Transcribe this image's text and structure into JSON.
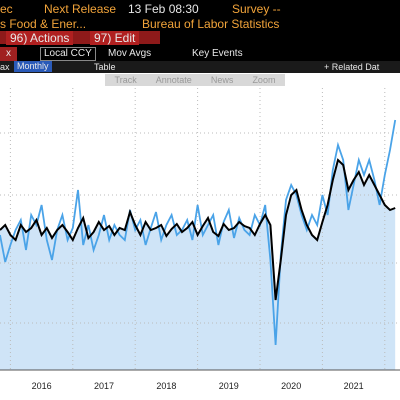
{
  "header": {
    "security": "ec",
    "release_label": "Next Release",
    "release_value": "13 Feb 08:30",
    "survey": "Survey --",
    "description": "s Food & Ener...",
    "source": "Bureau of Labor Statistics",
    "actions": "96) Actions",
    "edit": "97) Edit",
    "field": "x",
    "currency": "Local CCY",
    "mov_avgs": "Mov Avgs",
    "key_events": "Key Events",
    "max": "ax",
    "frequency": "Monthly",
    "table": "Table",
    "related": "+ Related Dat",
    "tools": [
      "Track",
      "Annotate",
      "News",
      "Zoom"
    ]
  },
  "chart_data": {
    "type": "line",
    "categories": [
      null,
      null,
      null,
      null,
      null,
      null,
      null,
      null,
      "2016",
      null,
      null,
      null,
      null,
      null,
      null,
      null,
      null,
      null,
      null,
      null,
      "2017",
      null,
      null,
      null,
      null,
      null,
      null,
      null,
      null,
      null,
      null,
      null,
      "2018",
      null,
      null,
      null,
      null,
      null,
      null,
      null,
      null,
      null,
      null,
      null,
      "2019",
      null,
      null,
      null,
      null,
      null,
      null,
      null,
      null,
      null,
      null,
      null,
      "2020",
      null,
      null,
      null,
      null,
      null,
      null,
      null,
      null,
      null,
      null,
      null,
      "2021",
      null,
      null,
      null,
      null,
      null,
      null,
      null,
      null
    ],
    "ylim": [
      0,
      282
    ],
    "series": [
      {
        "color": "#000000",
        "area": "#cfe4f7",
        "values": [
          140,
          145,
          135,
          130,
          145,
          138,
          142,
          150,
          135,
          142,
          132,
          140,
          145,
          138,
          130,
          142,
          152,
          132,
          138,
          148,
          140,
          144,
          135,
          142,
          140,
          158,
          145,
          135,
          148,
          140,
          142,
          145,
          134,
          141,
          146,
          138,
          142,
          148,
          135,
          144,
          152,
          138,
          134,
          146,
          140,
          142,
          148,
          144,
          142,
          135,
          146,
          155,
          145,
          70,
          110,
          155,
          175,
          180,
          160,
          145,
          135,
          130,
          148,
          165,
          190,
          210,
          205,
          180,
          190,
          198,
          185,
          195,
          185,
          175,
          165,
          160,
          162
        ]
      },
      {
        "color": "#4aa3e8",
        "values": [
          135,
          108,
          125,
          140,
          150,
          120,
          155,
          145,
          165,
          130,
          110,
          140,
          155,
          130,
          142,
          180,
          125,
          145,
          120,
          135,
          155,
          130,
          145,
          135,
          130,
          160,
          140,
          150,
          125,
          142,
          158,
          130,
          145,
          155,
          135,
          140,
          150,
          130,
          165,
          135,
          145,
          155,
          125,
          148,
          160,
          132,
          152,
          140,
          135,
          155,
          145,
          165,
          110,
          25,
          115,
          170,
          185,
          175,
          155,
          140,
          155,
          145,
          175,
          155,
          200,
          225,
          210,
          160,
          185,
          210,
          195,
          210,
          190,
          165,
          195,
          220,
          250
        ]
      }
    ]
  }
}
